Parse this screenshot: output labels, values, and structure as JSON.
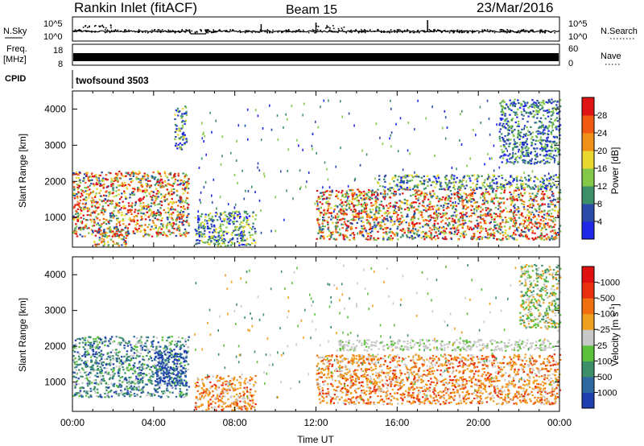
{
  "header": {
    "site_title": "Rankin Inlet (fitACF)",
    "beam": "Beam 15",
    "date": "23/Mar/2016"
  },
  "noise_panel": {
    "left_label": "N.Sky",
    "right_label": "N.Search",
    "left_ticks": [
      "10^5",
      "10^0"
    ],
    "right_ticks": [
      "10^5",
      "10^0"
    ]
  },
  "freq_panel": {
    "left_label_line1": "Freq.",
    "left_label_line2": "[MHz]",
    "right_label": "Nave",
    "left_ticks": [
      "18",
      "8"
    ],
    "right_ticks": [
      "60",
      "0"
    ]
  },
  "cpid_panel": {
    "label": "CPID",
    "program": "twofsound 3503"
  },
  "x_axis": {
    "label": "Time UT",
    "ticks": [
      "00:00",
      "04:00",
      "08:00",
      "12:00",
      "16:00",
      "20:00",
      "00:00"
    ]
  },
  "chart_data": [
    {
      "type": "heatmap",
      "name": "power",
      "ylabel": "Slant Range [km]",
      "ylim": [
        180,
        4500
      ],
      "xlim": [
        "00:00",
        "24:00"
      ],
      "yticks": [
        1000,
        2000,
        3000,
        4000
      ],
      "colorbar": {
        "label": "Power [dB]",
        "ticks": [
          "4",
          "8",
          "12",
          "16",
          "20",
          "24",
          "28"
        ],
        "colors": [
          "#1e28e6",
          "#2c4aa8",
          "#3d8f6a",
          "#84c84a",
          "#e8d830",
          "#f09018",
          "#f05a12",
          "#e01414"
        ]
      },
      "regions": [
        {
          "t": [
            0.0,
            5.7
          ],
          "r": [
            500,
            2300
          ],
          "level": "high"
        },
        {
          "t": [
            1.0,
            2.8
          ],
          "r": [
            180,
            700
          ],
          "level": "high"
        },
        {
          "t": [
            5.0,
            5.6
          ],
          "r": [
            2900,
            4100
          ],
          "level": "mid"
        },
        {
          "t": [
            6.0,
            9.0
          ],
          "r": [
            180,
            1200
          ],
          "level": "mid"
        },
        {
          "t": [
            12.0,
            24.0
          ],
          "r": [
            400,
            1800
          ],
          "level": "high"
        },
        {
          "t": [
            15.0,
            24.0
          ],
          "r": [
            1800,
            2200
          ],
          "level": "mid"
        },
        {
          "t": [
            21.0,
            24.0
          ],
          "r": [
            2500,
            4300
          ],
          "level": "low"
        }
      ]
    },
    {
      "type": "heatmap",
      "name": "velocity",
      "ylabel": "Slant Range [km]",
      "ylim": [
        180,
        4500
      ],
      "xlim": [
        "00:00",
        "24:00"
      ],
      "yticks": [
        1000,
        2000,
        3000,
        4000
      ],
      "colorbar": {
        "label": "Velocity [m s^-1]",
        "ticks": [
          "1000",
          "500",
          "100",
          "25",
          "-25",
          "-100",
          "-500",
          "-1000"
        ],
        "colors": [
          "#2040b0",
          "#2e6aa0",
          "#3d8f6a",
          "#5cc03a",
          "#c8c8c8",
          "#f0a020",
          "#f07010",
          "#e83010",
          "#e01010"
        ]
      },
      "regions": [
        {
          "t": [
            0.0,
            5.7
          ],
          "r": [
            600,
            2300
          ],
          "level": "positive"
        },
        {
          "t": [
            4.0,
            5.6
          ],
          "r": [
            900,
            1900
          ],
          "level": "strong_positive"
        },
        {
          "t": [
            6.0,
            9.0
          ],
          "r": [
            180,
            1200
          ],
          "level": "negative"
        },
        {
          "t": [
            12.0,
            24.0
          ],
          "r": [
            400,
            1800
          ],
          "level": "negative"
        },
        {
          "t": [
            13.0,
            24.0
          ],
          "r": [
            1900,
            2200
          ],
          "level": "ground_scatter"
        },
        {
          "t": [
            22.0,
            24.0
          ],
          "r": [
            2500,
            4300
          ],
          "level": "mixed"
        }
      ]
    }
  ]
}
